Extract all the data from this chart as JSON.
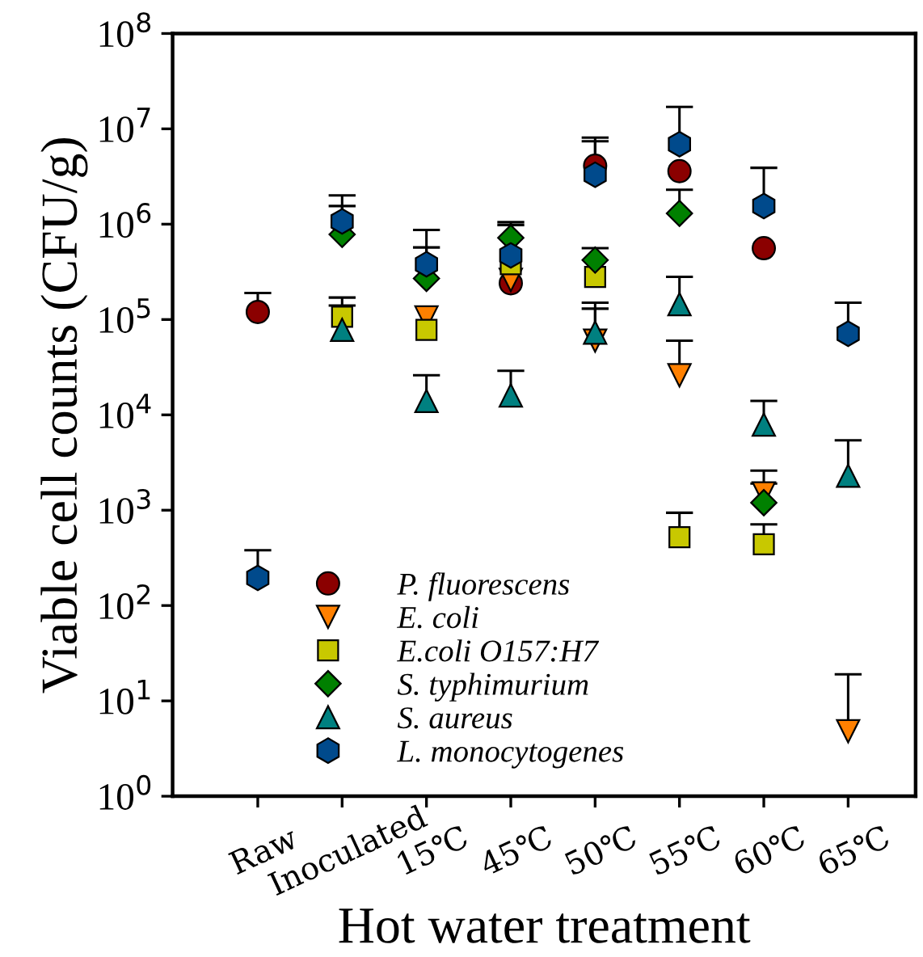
{
  "chart_data": {
    "type": "scatter",
    "xlabel": "Hot water treatment",
    "ylabel": "Viable cell counts (CFU/g)",
    "categories": [
      "Raw",
      "Inoculated",
      "15℃",
      "45℃",
      "50℃",
      "55℃",
      "60℃",
      "65℃"
    ],
    "log": "y",
    "ylim": [
      1,
      100000000
    ],
    "yticks": [
      {
        "value": 1,
        "label": "10$^{0}$"
      },
      {
        "value": 10,
        "label": "10$^{1}$"
      },
      {
        "value": 100,
        "label": "10$^{2}$"
      },
      {
        "value": 1000,
        "label": "10$^{3}$"
      },
      {
        "value": 10000,
        "label": "10$^{4}$"
      },
      {
        "value": 100000,
        "label": "10$^{5}$"
      },
      {
        "value": 1000000,
        "label": "10$^{6}$"
      },
      {
        "value": 10000000,
        "label": "10$^{7}$"
      },
      {
        "value": 100000000,
        "label": "10$^{8}$"
      }
    ],
    "grid": false,
    "legend": "bottom left",
    "series": [
      {
        "name": "P. fluorescens",
        "color": "#8b0000",
        "values": [
          120000,
          null,
          null,
          240000,
          4100000,
          3600000,
          560000,
          null
        ],
        "errors": [
          [
            120000,
            190000
          ],
          null,
          null,
          null,
          [
            4100000,
            8100000
          ],
          null,
          null,
          null
        ]
      },
      {
        "name": "E. coli",
        "color": "#ff8000",
        "values": [
          null,
          null,
          105000,
          260000,
          60000,
          26000,
          1500,
          4.8
        ],
        "errors": [
          null,
          null,
          null,
          null,
          [
            60000,
            130000
          ],
          [
            26000,
            60000
          ],
          [
            1500,
            1900
          ],
          [
            4.8,
            19
          ]
        ]
      },
      {
        "name": "E.coli O157:H7",
        "color": "#c8c800",
        "values": [
          null,
          107000,
          78000,
          380000,
          280000,
          520,
          440,
          null
        ],
        "errors": [
          null,
          [
            107000,
            170000
          ],
          null,
          null,
          null,
          [
            520,
            940
          ],
          [
            440,
            710
          ],
          null
        ]
      },
      {
        "name": "S. typhimurium",
        "color": "#008000",
        "values": [
          null,
          780000,
          270000,
          720000,
          420000,
          1300000,
          1200,
          null
        ],
        "errors": [
          null,
          [
            780000,
            1550000
          ],
          [
            270000,
            570000
          ],
          [
            720000,
            1050000
          ],
          [
            420000,
            560000
          ],
          [
            1300000,
            2300000
          ],
          [
            1200,
            2600
          ],
          null
        ]
      },
      {
        "name": "S. aureus",
        "color": "#008080",
        "values": [
          null,
          78000,
          14000,
          16000,
          73000,
          145000,
          7900,
          2300
        ],
        "errors": [
          null,
          [
            78000,
            140000
          ],
          [
            14000,
            26000
          ],
          [
            16000,
            29000
          ],
          [
            73000,
            150000
          ],
          [
            145000,
            280000
          ],
          [
            7900,
            14000
          ],
          [
            2300,
            5400
          ]
        ]
      },
      {
        "name": "L. monocytogenes",
        "color": "#004a8c",
        "values": [
          195,
          1070000,
          380000,
          470000,
          3300000,
          6900000,
          1550000,
          71000
        ],
        "errors": [
          [
            195,
            380
          ],
          [
            1070000,
            2000000
          ],
          [
            380000,
            870000
          ],
          [
            470000,
            980000
          ],
          [
            3300000,
            7400000
          ],
          [
            6900000,
            17000000
          ],
          [
            1550000,
            3900000
          ],
          [
            71000,
            150000
          ]
        ]
      }
    ]
  }
}
